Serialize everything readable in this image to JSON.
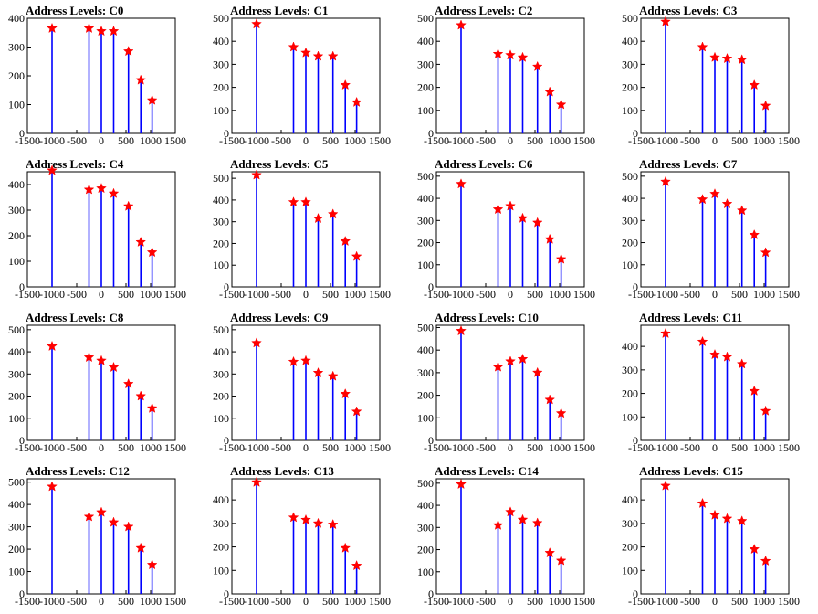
{
  "style": {
    "bar_color": "#0000ff",
    "star_color": "#ff0000",
    "axis_color": "#000000"
  },
  "chart_data": [
    {
      "type": "bar",
      "title": "Address Levels: C0",
      "xlim": [
        -1500,
        1500
      ],
      "ylim": [
        0,
        400
      ],
      "yticks": [
        0,
        100,
        200,
        300,
        400
      ],
      "xticks": [
        -1500,
        -1000,
        -500,
        0,
        500,
        1000,
        1500
      ],
      "xtick_labels": [
        "-1500",
        "-1000",
        "-500",
        "0",
        "500",
        "1000",
        "1500"
      ],
      "peaks": [
        {
          "x": -1000,
          "y": 365
        },
        {
          "x": -250,
          "y": 365
        },
        {
          "x": 0,
          "y": 355
        },
        {
          "x": 250,
          "y": 355
        },
        {
          "x": 550,
          "y": 285
        },
        {
          "x": 800,
          "y": 185
        },
        {
          "x": 1030,
          "y": 115
        }
      ]
    },
    {
      "type": "bar",
      "title": "Address Levels: C1",
      "xlim": [
        -1500,
        1500
      ],
      "ylim": [
        0,
        500
      ],
      "yticks": [
        0,
        100,
        200,
        300,
        400,
        500
      ],
      "xticks": [
        -1500,
        -1000,
        -500,
        0,
        500,
        1000,
        1500
      ],
      "xtick_labels": [
        "-1500",
        "-1000",
        "-500",
        "0",
        "500",
        "1000",
        "1500"
      ],
      "peaks": [
        {
          "x": -1000,
          "y": 475
        },
        {
          "x": -250,
          "y": 375
        },
        {
          "x": 0,
          "y": 350
        },
        {
          "x": 250,
          "y": 335
        },
        {
          "x": 550,
          "y": 335
        },
        {
          "x": 800,
          "y": 210
        },
        {
          "x": 1030,
          "y": 135
        }
      ]
    },
    {
      "type": "bar",
      "title": "Address Levels: C2",
      "xlim": [
        -1500,
        1500
      ],
      "ylim": [
        0,
        500
      ],
      "yticks": [
        0,
        100,
        200,
        300,
        400,
        500
      ],
      "xticks": [
        -1500,
        -1000,
        -500,
        0,
        500,
        1000,
        1500
      ],
      "xtick_labels": [
        "-1500",
        "-1000",
        "-500",
        "0",
        "500",
        "1000",
        "1500"
      ],
      "peaks": [
        {
          "x": -1000,
          "y": 470
        },
        {
          "x": -250,
          "y": 345
        },
        {
          "x": 0,
          "y": 340
        },
        {
          "x": 250,
          "y": 330
        },
        {
          "x": 550,
          "y": 290
        },
        {
          "x": 800,
          "y": 180
        },
        {
          "x": 1030,
          "y": 125
        }
      ]
    },
    {
      "type": "bar",
      "title": "Address Levels: C3",
      "xlim": [
        -1500,
        1500
      ],
      "ylim": [
        0,
        500
      ],
      "yticks": [
        0,
        100,
        200,
        300,
        400,
        500
      ],
      "xticks": [
        -1500,
        -1000,
        -500,
        0,
        500,
        1000,
        1500
      ],
      "xtick_labels": [
        "-1500",
        "-1000",
        "-500",
        "0",
        "500",
        "1000",
        "1500"
      ],
      "peaks": [
        {
          "x": -1000,
          "y": 485
        },
        {
          "x": -250,
          "y": 375
        },
        {
          "x": 0,
          "y": 330
        },
        {
          "x": 250,
          "y": 325
        },
        {
          "x": 550,
          "y": 320
        },
        {
          "x": 800,
          "y": 210
        },
        {
          "x": 1030,
          "y": 120
        }
      ]
    },
    {
      "type": "bar",
      "title": "Address Levels: C4",
      "xlim": [
        -1500,
        1500
      ],
      "ylim": [
        0,
        450
      ],
      "yticks": [
        0,
        100,
        200,
        300,
        400
      ],
      "xticks": [
        -1500,
        -1000,
        -500,
        0,
        500,
        1000,
        1500
      ],
      "xtick_labels": [
        "-1500",
        "-1000",
        "-500",
        "0",
        "500",
        "1000",
        "1500"
      ],
      "peaks": [
        {
          "x": -1000,
          "y": 455
        },
        {
          "x": -250,
          "y": 380
        },
        {
          "x": 0,
          "y": 385
        },
        {
          "x": 250,
          "y": 365
        },
        {
          "x": 550,
          "y": 315
        },
        {
          "x": 800,
          "y": 175
        },
        {
          "x": 1030,
          "y": 135
        }
      ]
    },
    {
      "type": "bar",
      "title": "Address Levels: C5",
      "xlim": [
        -1500,
        1500
      ],
      "ylim": [
        0,
        530
      ],
      "yticks": [
        0,
        100,
        200,
        300,
        400,
        500
      ],
      "xticks": [
        -1500,
        -1000,
        -500,
        0,
        500,
        1000,
        1500
      ],
      "xtick_labels": [
        "-1500",
        "-1000",
        "-500",
        "0",
        "500",
        "1000",
        "1500"
      ],
      "peaks": [
        {
          "x": -1000,
          "y": 515
        },
        {
          "x": -250,
          "y": 390
        },
        {
          "x": 0,
          "y": 390
        },
        {
          "x": 250,
          "y": 315
        },
        {
          "x": 550,
          "y": 335
        },
        {
          "x": 800,
          "y": 210
        },
        {
          "x": 1030,
          "y": 140
        }
      ]
    },
    {
      "type": "bar",
      "title": "Address Levels: C6",
      "xlim": [
        -1500,
        1500
      ],
      "ylim": [
        0,
        520
      ],
      "yticks": [
        0,
        100,
        200,
        300,
        400,
        500
      ],
      "xticks": [
        -1500,
        -1000,
        -500,
        0,
        500,
        1000,
        1500
      ],
      "xtick_labels": [
        "-1500",
        "-1000",
        "-500",
        "0",
        "500",
        "1000",
        "1500"
      ],
      "peaks": [
        {
          "x": -1000,
          "y": 465
        },
        {
          "x": -250,
          "y": 350
        },
        {
          "x": 0,
          "y": 365
        },
        {
          "x": 250,
          "y": 310
        },
        {
          "x": 550,
          "y": 290
        },
        {
          "x": 800,
          "y": 215
        },
        {
          "x": 1030,
          "y": 125
        }
      ]
    },
    {
      "type": "bar",
      "title": "Address Levels: C7",
      "xlim": [
        -1500,
        1500
      ],
      "ylim": [
        0,
        520
      ],
      "yticks": [
        0,
        100,
        200,
        300,
        400,
        500
      ],
      "xticks": [
        -1500,
        -1000,
        -500,
        0,
        500,
        1000,
        1500
      ],
      "xtick_labels": [
        "-1500",
        "-1000",
        "-500",
        "0",
        "500",
        "1000",
        "1500"
      ],
      "peaks": [
        {
          "x": -1000,
          "y": 475
        },
        {
          "x": -250,
          "y": 395
        },
        {
          "x": 0,
          "y": 420
        },
        {
          "x": 250,
          "y": 375
        },
        {
          "x": 550,
          "y": 345
        },
        {
          "x": 800,
          "y": 235
        },
        {
          "x": 1030,
          "y": 155
        }
      ]
    },
    {
      "type": "bar",
      "title": "Address Levels: C8",
      "xlim": [
        -1500,
        1500
      ],
      "ylim": [
        0,
        520
      ],
      "yticks": [
        0,
        100,
        200,
        300,
        400,
        500
      ],
      "xticks": [
        -1500,
        -1000,
        -500,
        0,
        500,
        1000,
        1500
      ],
      "xtick_labels": [
        "-1500",
        "-1000",
        "-500",
        "0",
        "500",
        "1000",
        "1500"
      ],
      "peaks": [
        {
          "x": -1000,
          "y": 425
        },
        {
          "x": -250,
          "y": 375
        },
        {
          "x": 0,
          "y": 360
        },
        {
          "x": 250,
          "y": 330
        },
        {
          "x": 550,
          "y": 255
        },
        {
          "x": 800,
          "y": 200
        },
        {
          "x": 1030,
          "y": 145
        }
      ]
    },
    {
      "type": "bar",
      "title": "Address Levels: C9",
      "xlim": [
        -1500,
        1500
      ],
      "ylim": [
        0,
        520
      ],
      "yticks": [
        0,
        100,
        200,
        300,
        400,
        500
      ],
      "xticks": [
        -1500,
        -1000,
        -500,
        0,
        500,
        1000,
        1500
      ],
      "xtick_labels": [
        "-1500",
        "-1000",
        "-500",
        "0",
        "500",
        "1000",
        "1500"
      ],
      "peaks": [
        {
          "x": -1000,
          "y": 440
        },
        {
          "x": -250,
          "y": 355
        },
        {
          "x": 0,
          "y": 360
        },
        {
          "x": 250,
          "y": 305
        },
        {
          "x": 550,
          "y": 290
        },
        {
          "x": 800,
          "y": 210
        },
        {
          "x": 1030,
          "y": 130
        }
      ]
    },
    {
      "type": "bar",
      "title": "Address Levels: C10",
      "xlim": [
        -1500,
        1500
      ],
      "ylim": [
        0,
        510
      ],
      "yticks": [
        0,
        100,
        200,
        300,
        400,
        500
      ],
      "xticks": [
        -1500,
        -1000,
        -500,
        0,
        500,
        1000,
        1500
      ],
      "xtick_labels": [
        "-1500",
        "-1000",
        "-500",
        "0",
        "500",
        "1000",
        "1500"
      ],
      "peaks": [
        {
          "x": -1000,
          "y": 485
        },
        {
          "x": -250,
          "y": 325
        },
        {
          "x": 0,
          "y": 350
        },
        {
          "x": 250,
          "y": 360
        },
        {
          "x": 550,
          "y": 300
        },
        {
          "x": 800,
          "y": 180
        },
        {
          "x": 1030,
          "y": 120
        }
      ]
    },
    {
      "type": "bar",
      "title": "Address Levels: C11",
      "xlim": [
        -1500,
        1500
      ],
      "ylim": [
        0,
        490
      ],
      "yticks": [
        0,
        100,
        200,
        300,
        400
      ],
      "xticks": [
        -1500,
        -1000,
        -500,
        0,
        500,
        1000,
        1500
      ],
      "xtick_labels": [
        "-1500",
        "-1000",
        "-500",
        "0",
        "500",
        "1000",
        "1500"
      ],
      "peaks": [
        {
          "x": -1000,
          "y": 455
        },
        {
          "x": -250,
          "y": 420
        },
        {
          "x": 0,
          "y": 365
        },
        {
          "x": 250,
          "y": 355
        },
        {
          "x": 550,
          "y": 325
        },
        {
          "x": 800,
          "y": 210
        },
        {
          "x": 1030,
          "y": 125
        }
      ]
    },
    {
      "type": "bar",
      "title": "Address Levels: C12",
      "xlim": [
        -1500,
        1500
      ],
      "ylim": [
        0,
        515
      ],
      "yticks": [
        0,
        100,
        200,
        300,
        400,
        500
      ],
      "xticks": [
        -1500,
        -1000,
        -500,
        0,
        500,
        1000,
        1500
      ],
      "xtick_labels": [
        "-1500",
        "-1000",
        "-500",
        "0",
        "500",
        "1000",
        "1500"
      ],
      "peaks": [
        {
          "x": -1000,
          "y": 480
        },
        {
          "x": -250,
          "y": 345
        },
        {
          "x": 0,
          "y": 365
        },
        {
          "x": 250,
          "y": 320
        },
        {
          "x": 550,
          "y": 300
        },
        {
          "x": 800,
          "y": 205
        },
        {
          "x": 1030,
          "y": 130
        }
      ]
    },
    {
      "type": "bar",
      "title": "Address Levels: C13",
      "xlim": [
        -1500,
        1500
      ],
      "ylim": [
        0,
        490
      ],
      "yticks": [
        0,
        100,
        200,
        300,
        400
      ],
      "xticks": [
        -1500,
        -1000,
        -500,
        0,
        500,
        1000,
        1500
      ],
      "xtick_labels": [
        "-1500",
        "-1000",
        "-500",
        "0",
        "500",
        "1000",
        "1500"
      ],
      "peaks": [
        {
          "x": -1000,
          "y": 475
        },
        {
          "x": -250,
          "y": 325
        },
        {
          "x": 0,
          "y": 315
        },
        {
          "x": 250,
          "y": 300
        },
        {
          "x": 550,
          "y": 295
        },
        {
          "x": 800,
          "y": 195
        },
        {
          "x": 1030,
          "y": 120
        }
      ]
    },
    {
      "type": "bar",
      "title": "Address Levels: C14",
      "xlim": [
        -1500,
        1500
      ],
      "ylim": [
        0,
        520
      ],
      "yticks": [
        0,
        100,
        200,
        300,
        400,
        500
      ],
      "xticks": [
        -1500,
        -1000,
        -500,
        0,
        500,
        1000,
        1500
      ],
      "xtick_labels": [
        "-1500",
        "-1000",
        "-500",
        "0",
        "500",
        "1000",
        "1500"
      ],
      "peaks": [
        {
          "x": -1000,
          "y": 495
        },
        {
          "x": -250,
          "y": 310
        },
        {
          "x": 0,
          "y": 370
        },
        {
          "x": 250,
          "y": 335
        },
        {
          "x": 550,
          "y": 320
        },
        {
          "x": 800,
          "y": 185
        },
        {
          "x": 1030,
          "y": 150
        }
      ]
    },
    {
      "type": "bar",
      "title": "Address Levels: C15",
      "xlim": [
        -1500,
        1500
      ],
      "ylim": [
        0,
        490
      ],
      "yticks": [
        0,
        100,
        200,
        300,
        400
      ],
      "xticks": [
        -1500,
        -1000,
        -500,
        0,
        500,
        1000,
        1500
      ],
      "xtick_labels": [
        "-1500",
        "-1000",
        "-500",
        "0",
        "500",
        "1000",
        "1500"
      ],
      "peaks": [
        {
          "x": -1000,
          "y": 460
        },
        {
          "x": -250,
          "y": 385
        },
        {
          "x": 0,
          "y": 335
        },
        {
          "x": 250,
          "y": 320
        },
        {
          "x": 550,
          "y": 310
        },
        {
          "x": 800,
          "y": 190
        },
        {
          "x": 1030,
          "y": 140
        }
      ]
    }
  ]
}
